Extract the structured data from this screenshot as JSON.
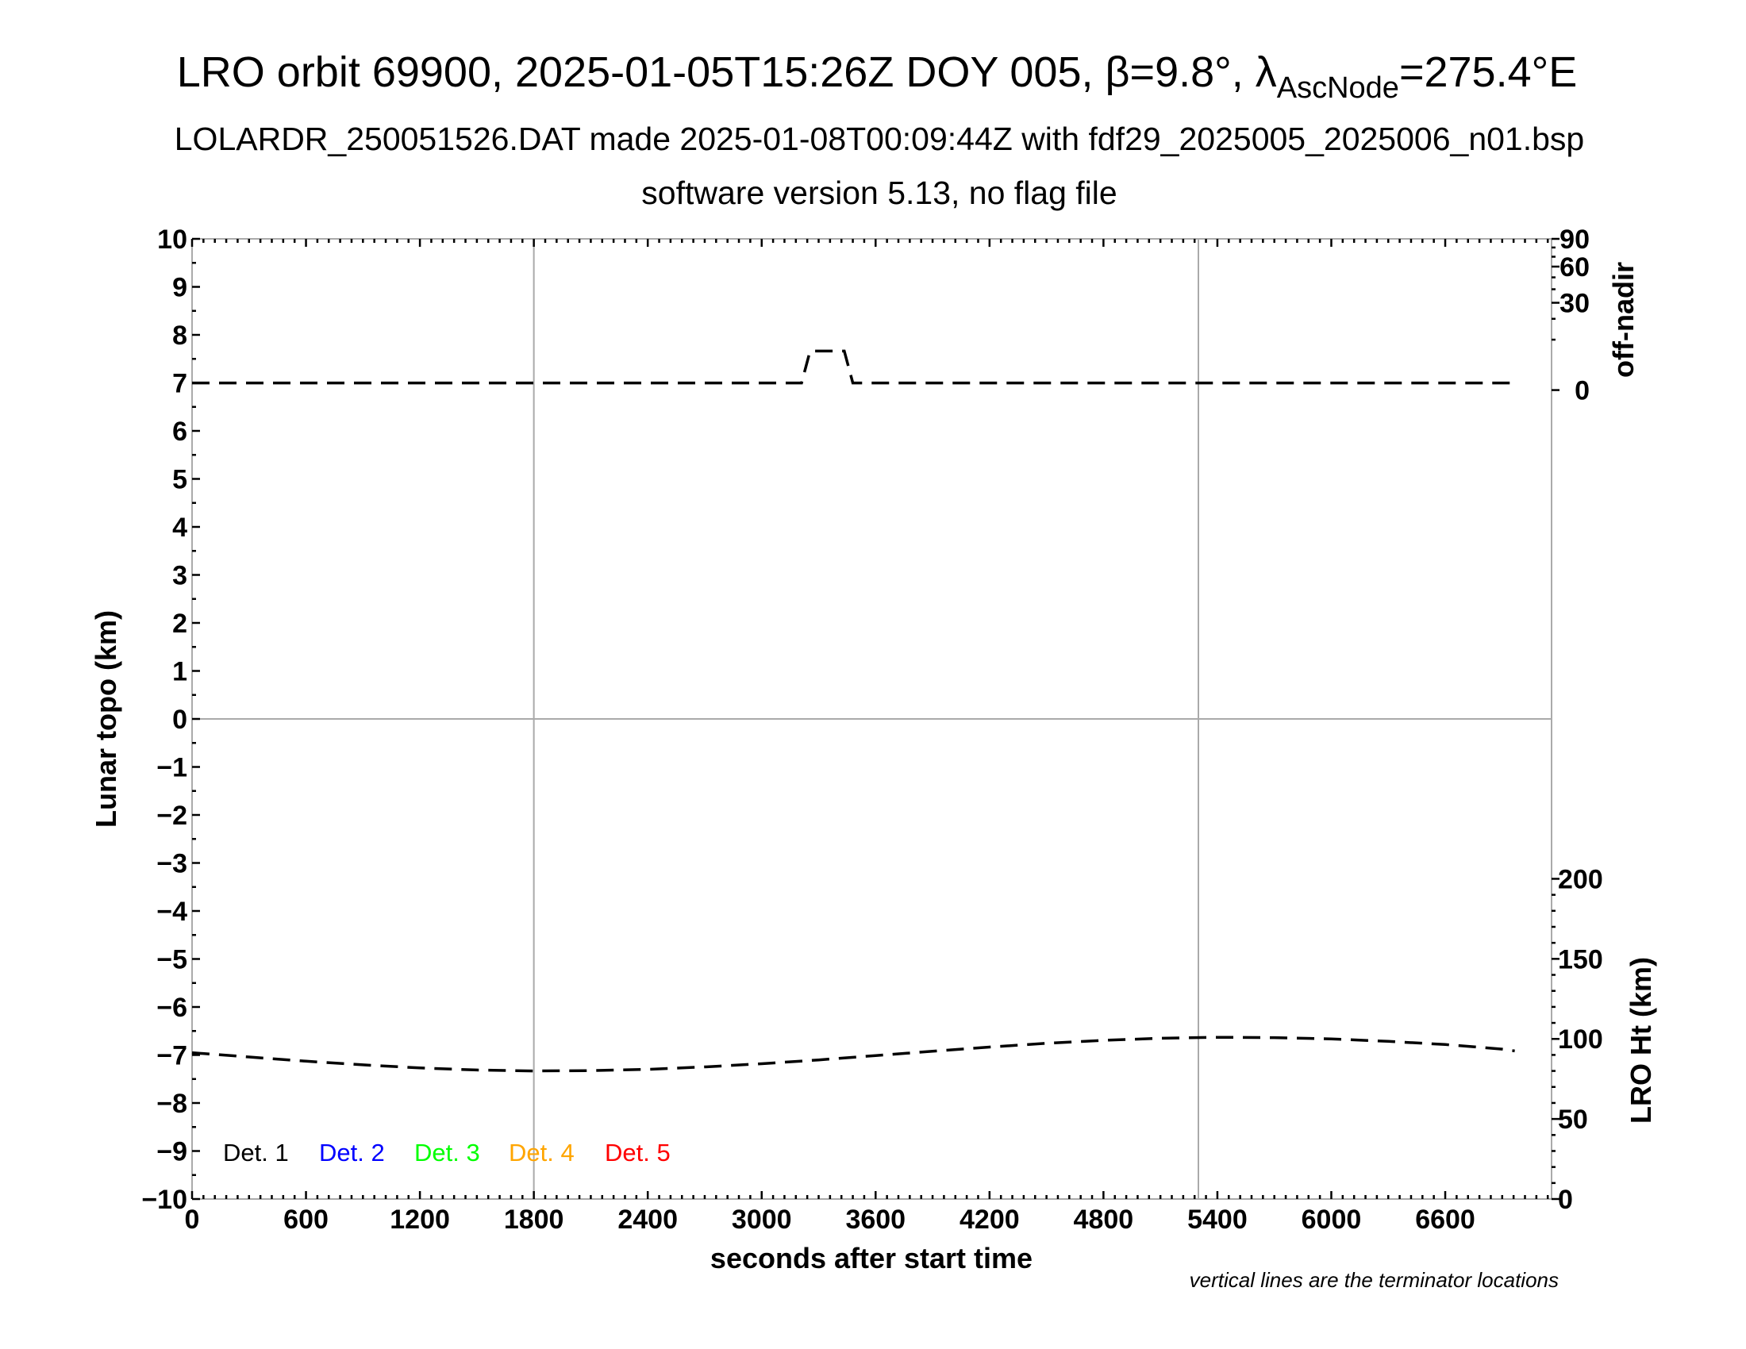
{
  "chart_data": {
    "type": "line",
    "title": "LRO orbit 69900, 2025-01-05T15:26Z DOY 005, β=9.8°, λ",
    "title_subscript": "AscNode",
    "title_suffix": "=275.4°E",
    "subtitle": "LOLARDR_250051526.DAT made 2025-01-08T00:09:44Z with fdf29_2025005_2025006_n01.bsp",
    "subtitle2": "software version 5.13, no flag file",
    "xlabel": "seconds after start time",
    "ylabel": "Lunar topo (km)",
    "y2label_top": "off-nadir",
    "y2label_bottom": "LRO Ht (km)",
    "note": "vertical lines are the terminator locations",
    "xlim": [
      0,
      7160
    ],
    "ylim": [
      -10,
      10
    ],
    "x_ticks": [
      "0",
      "600",
      "1200",
      "1800",
      "2400",
      "3000",
      "3600",
      "4200",
      "4800",
      "5400",
      "6000",
      "6600"
    ],
    "y_ticks": [
      "10",
      "9",
      "8",
      "7",
      "6",
      "5",
      "4",
      "3",
      "2",
      "1",
      "0",
      "−1",
      "−2",
      "−3",
      "−4",
      "−5",
      "−6",
      "−7",
      "−8",
      "−9",
      "−10"
    ],
    "offnadir_axis": {
      "scale": "sqrt",
      "range": [
        0,
        90
      ],
      "ticks": [
        "90",
        "60",
        "30",
        "0"
      ]
    },
    "height_axis": {
      "range": [
        0,
        200
      ],
      "ticks": [
        "200",
        "150",
        "100",
        "50",
        "0"
      ]
    },
    "grid": "terminator lines and zero line only",
    "terminator_lines_s": [
      1800,
      5300
    ],
    "legend": {
      "placement": "bottom-left",
      "entries": [
        {
          "label": "Det. 1",
          "color": "#000000"
        },
        {
          "label": "Det. 2",
          "color": "#0000ff"
        },
        {
          "label": "Det. 3",
          "color": "#00ff00"
        },
        {
          "label": "Det. 4",
          "color": "#ffa500"
        },
        {
          "label": "Det. 5",
          "color": "#ff0000"
        }
      ]
    },
    "series": [
      {
        "axis": "off-nadir (deg)",
        "style": "dashed black",
        "points": [
          [
            0,
            0.2
          ],
          [
            3210,
            0.2
          ],
          [
            3255,
            6
          ],
          [
            3435,
            6
          ],
          [
            3480,
            0.2
          ],
          [
            6966,
            0.2
          ]
        ]
      },
      {
        "axis": "LRO Ht (km)",
        "style": "dashed black",
        "points": [
          [
            0,
            91.4
          ],
          [
            300,
            88.7
          ],
          [
            600,
            86.1
          ],
          [
            900,
            83.8
          ],
          [
            1200,
            81.9
          ],
          [
            1500,
            80.6
          ],
          [
            1800,
            80.0
          ],
          [
            2100,
            80.2
          ],
          [
            2400,
            81.0
          ],
          [
            2700,
            82.5
          ],
          [
            3000,
            84.5
          ],
          [
            3300,
            86.9
          ],
          [
            3600,
            89.6
          ],
          [
            3900,
            92.3
          ],
          [
            4200,
            94.9
          ],
          [
            4500,
            97.3
          ],
          [
            4800,
            99.1
          ],
          [
            5100,
            100.4
          ],
          [
            5400,
            101.0
          ],
          [
            5700,
            100.8
          ],
          [
            6000,
            100.0
          ],
          [
            6300,
            98.5
          ],
          [
            6600,
            96.5
          ],
          [
            6900,
            93.6
          ],
          [
            6966,
            92.5
          ]
        ]
      }
    ]
  }
}
